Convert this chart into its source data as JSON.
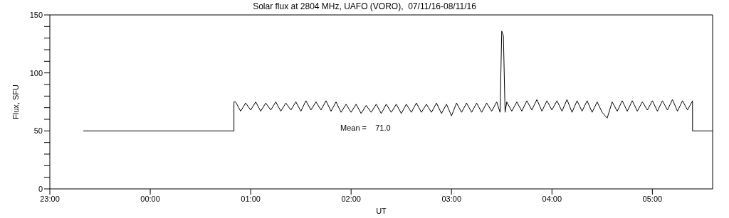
{
  "chart_data": {
    "type": "line",
    "title": "Solar flux at 2804 MHz, UAFO (VORO),  07/11/16-08/11/16",
    "xlabel": "UT",
    "ylabel": "Flux, SFU",
    "annotations": [
      "Mean =    71.0"
    ],
    "xlim": [
      "--11-07T23:00",
      "--11-08T05:36"
    ],
    "xticks": [
      {
        "value": "--11-07T23:00",
        "label": "23:00"
      },
      {
        "value": "--11-08T00:00",
        "label": "00:00"
      },
      {
        "value": "--11-08T01:00",
        "label": "01:00"
      },
      {
        "value": "--11-08T02:00",
        "label": "02:00"
      },
      {
        "value": "--11-08T03:00",
        "label": "03:00"
      },
      {
        "value": "--11-08T04:00",
        "label": "04:00"
      },
      {
        "value": "--11-08T05:00",
        "label": "05:00"
      }
    ],
    "ylim": [
      0,
      150
    ],
    "yticks": [
      0,
      {
        "value": 10,
        "label": null
      },
      {
        "value": 20,
        "label": null
      },
      {
        "value": 30,
        "label": null
      },
      {
        "value": 40,
        "label": null
      },
      50,
      {
        "value": 60,
        "label": null
      },
      {
        "value": 70,
        "label": null
      },
      {
        "value": 80,
        "label": null
      },
      {
        "value": 90,
        "label": null
      },
      100,
      {
        "value": 110,
        "label": null
      },
      {
        "value": 120,
        "label": null
      },
      {
        "value": 130,
        "label": null
      },
      {
        "value": 140,
        "label": null
      },
      150
    ],
    "marker": "none",
    "line_style": "solid",
    "series": [
      {
        "color": "#000000",
        "x": [
          "--11-07T23:20",
          "--11-08T00:50",
          "--11-08T00:50",
          "--11-08T00:51",
          "--11-08T00:54",
          "--11-08T00:57",
          "--11-08T01:00",
          "--11-08T01:03",
          "--11-08T01:06",
          "--11-08T01:09",
          "--11-08T01:12",
          "--11-08T01:15",
          "--11-08T01:18",
          "--11-08T01:21",
          "--11-08T01:24",
          "--11-08T01:27",
          "--11-08T01:30",
          "--11-08T01:33",
          "--11-08T01:36",
          "--11-08T01:39",
          "--11-08T01:42",
          "--11-08T01:45",
          "--11-08T01:48",
          "--11-08T01:51",
          "--11-08T01:54",
          "--11-08T01:57",
          "--11-08T02:00",
          "--11-08T02:03",
          "--11-08T02:06",
          "--11-08T02:09",
          "--11-08T02:12",
          "--11-08T02:15",
          "--11-08T02:18",
          "--11-08T02:21",
          "--11-08T02:24",
          "--11-08T02:27",
          "--11-08T02:30",
          "--11-08T02:33",
          "--11-08T02:36",
          "--11-08T02:39",
          "--11-08T02:42",
          "--11-08T02:45",
          "--11-08T02:48",
          "--11-08T02:51",
          "--11-08T02:54",
          "--11-08T02:57",
          "--11-08T03:00",
          "--11-08T03:03",
          "--11-08T03:06",
          "--11-08T03:09",
          "--11-08T03:12",
          "--11-08T03:15",
          "--11-08T03:18",
          "--11-08T03:21",
          "--11-08T03:24",
          "--11-08T03:27",
          "--11-08T03:29",
          "--11-08T03:30",
          "--11-08T03:31",
          "--11-08T03:32",
          "--11-08T03:33",
          "--11-08T03:36",
          "--11-08T03:39",
          "--11-08T03:42",
          "--11-08T03:45",
          "--11-08T03:48",
          "--11-08T03:51",
          "--11-08T03:54",
          "--11-08T03:57",
          "--11-08T04:00",
          "--11-08T04:03",
          "--11-08T04:06",
          "--11-08T04:09",
          "--11-08T04:12",
          "--11-08T04:15",
          "--11-08T04:18",
          "--11-08T04:21",
          "--11-08T04:24",
          "--11-08T04:27",
          "--11-08T04:30",
          "--11-08T04:33",
          "--11-08T04:36",
          "--11-08T04:39",
          "--11-08T04:42",
          "--11-08T04:45",
          "--11-08T04:48",
          "--11-08T04:51",
          "--11-08T04:54",
          "--11-08T04:57",
          "--11-08T05:00",
          "--11-08T05:03",
          "--11-08T05:06",
          "--11-08T05:09",
          "--11-08T05:12",
          "--11-08T05:15",
          "--11-08T05:18",
          "--11-08T05:21",
          "--11-08T05:24",
          "--11-08T05:24",
          "--11-08T05:36"
        ],
        "values": [
          50,
          50,
          75,
          75,
          67,
          74,
          68,
          75,
          67,
          74,
          68,
          75,
          67,
          74,
          68,
          75,
          67,
          76,
          68,
          75,
          68,
          76,
          67,
          75,
          66,
          73,
          66,
          73,
          65,
          72,
          66,
          73,
          65,
          73,
          66,
          73,
          65,
          73,
          66,
          74,
          66,
          73,
          66,
          74,
          65,
          73,
          63,
          74,
          66,
          74,
          66,
          74,
          66,
          74,
          67,
          75,
          66,
          136,
          132,
          66,
          75,
          67,
          75,
          67,
          76,
          68,
          77,
          67,
          76,
          68,
          76,
          67,
          77,
          66,
          76,
          67,
          76,
          66,
          75,
          66,
          61,
          75,
          67,
          76,
          67,
          76,
          67,
          75,
          68,
          76,
          67,
          76,
          68,
          77,
          67,
          76,
          68,
          76,
          50,
          50
        ]
      }
    ]
  }
}
